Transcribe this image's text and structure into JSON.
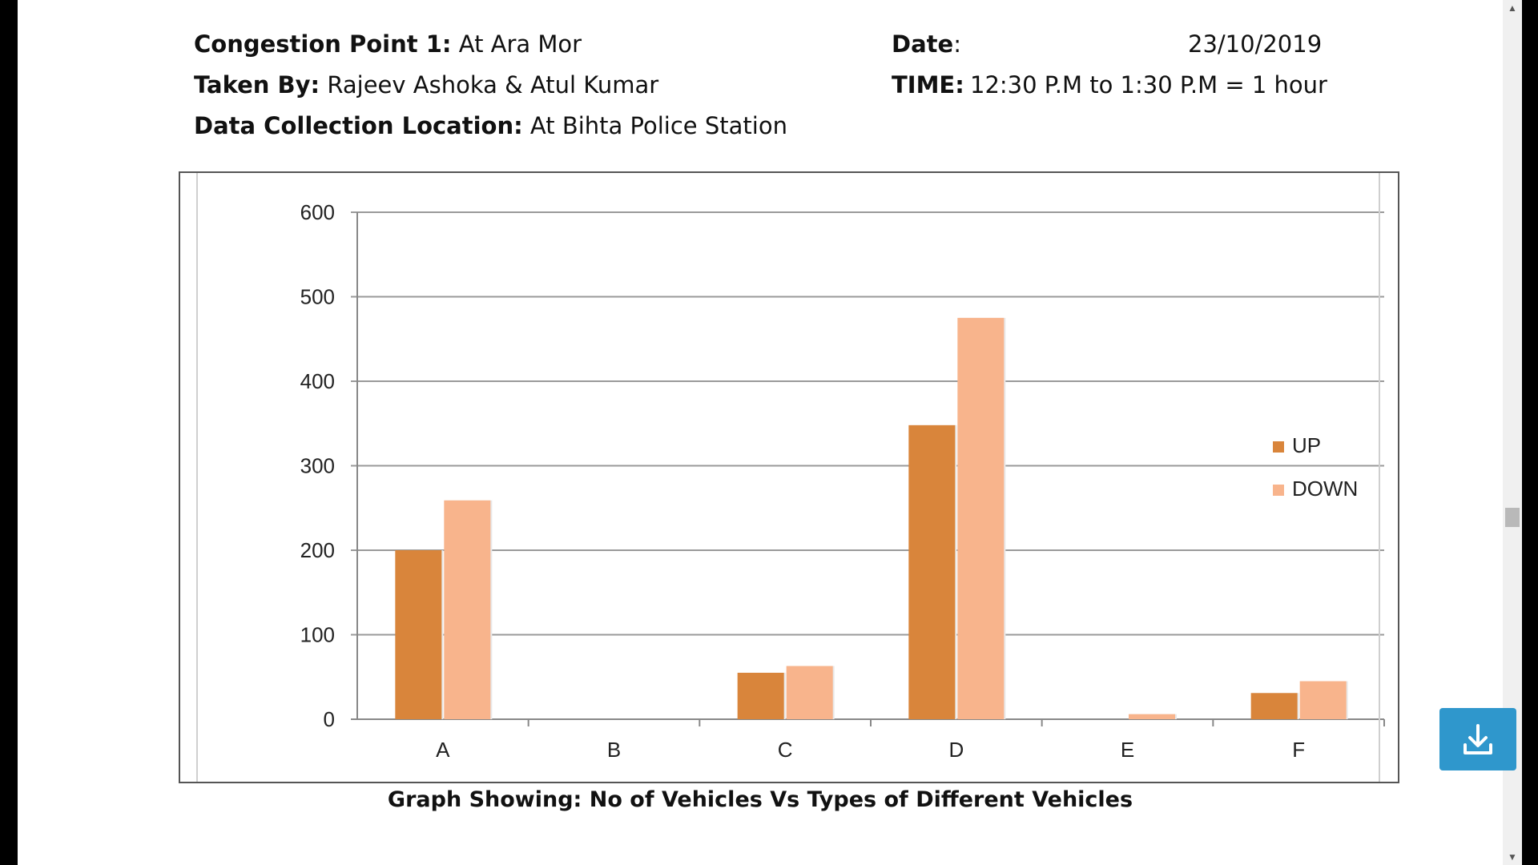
{
  "header": {
    "congestion_label": "Congestion Point 1:",
    "congestion_value": " At Ara Mor",
    "taken_by_label": "Taken By:",
    "taken_by_value": " Rajeev Ashoka & Atul Kumar",
    "location_label": "Data Collection Location:",
    "location_value": " At Bihta Police Station",
    "date_label": "Date",
    "date_colon": ":",
    "date_value": "23/10/2019",
    "time_label": "TIME:",
    "time_value": "12:30 P.M  to 1:30 P.M = 1 hour"
  },
  "caption": "Graph Showing: No of Vehicles Vs Types of Different Vehicles",
  "chart_data": {
    "type": "bar",
    "categories": [
      "A",
      "B",
      "C",
      "D",
      "E",
      "F"
    ],
    "series": [
      {
        "name": "UP",
        "color": "#d9853b",
        "values": [
          200,
          0,
          55,
          348,
          0,
          31
        ]
      },
      {
        "name": "DOWN",
        "color": "#f8b48c",
        "values": [
          259,
          0,
          63,
          475,
          6,
          45
        ]
      }
    ],
    "ylim": [
      0,
      600
    ],
    "yticks": [
      0,
      100,
      200,
      300,
      400,
      500,
      600
    ],
    "grid": true,
    "legend_position": "right"
  },
  "icons": {
    "download": "download-icon",
    "scroll_up": "▲",
    "scroll_down": "▼"
  }
}
